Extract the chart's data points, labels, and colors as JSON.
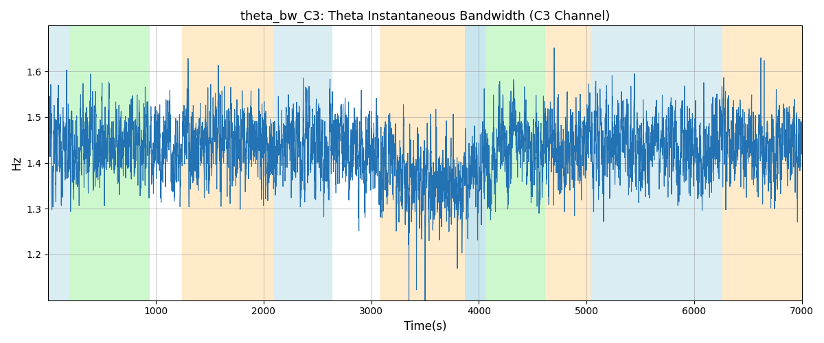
{
  "title": "theta_bw_C3: Theta Instantaneous Bandwidth (C3 Channel)",
  "xlabel": "Time(s)",
  "ylabel": "Hz",
  "xlim": [
    0,
    7000
  ],
  "ylim": [
    1.1,
    1.7
  ],
  "yticks": [
    1.2,
    1.3,
    1.4,
    1.5,
    1.6
  ],
  "xticks": [
    1000,
    2000,
    3000,
    4000,
    5000,
    6000,
    7000
  ],
  "line_color": "#2272b4",
  "line_width": 0.8,
  "bg_bands": [
    {
      "xmin": 0,
      "xmax": 195,
      "color": "#add8e6",
      "alpha": 0.45
    },
    {
      "xmin": 195,
      "xmax": 940,
      "color": "#90ee90",
      "alpha": 0.45
    },
    {
      "xmin": 1240,
      "xmax": 2090,
      "color": "#ffd9a0",
      "alpha": 0.55
    },
    {
      "xmin": 2090,
      "xmax": 2640,
      "color": "#add8e6",
      "alpha": 0.45
    },
    {
      "xmin": 3080,
      "xmax": 3870,
      "color": "#ffd9a0",
      "alpha": 0.55
    },
    {
      "xmin": 3870,
      "xmax": 4060,
      "color": "#add8e6",
      "alpha": 0.65
    },
    {
      "xmin": 4060,
      "xmax": 4620,
      "color": "#90ee90",
      "alpha": 0.45
    },
    {
      "xmin": 4620,
      "xmax": 5040,
      "color": "#ffd9a0",
      "alpha": 0.55
    },
    {
      "xmin": 5040,
      "xmax": 6260,
      "color": "#add8e6",
      "alpha": 0.45
    },
    {
      "xmin": 6260,
      "xmax": 7000,
      "color": "#ffd9a0",
      "alpha": 0.55
    }
  ],
  "seed": 12345,
  "n_points": 7000
}
